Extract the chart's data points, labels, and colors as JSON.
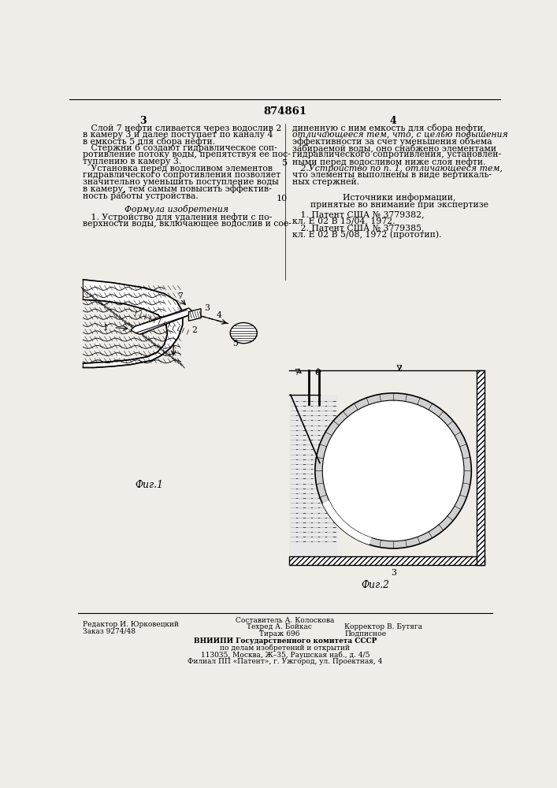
{
  "bg_color": "#f0ede8",
  "page_number_center": "874861",
  "col_left_number": "3",
  "col_right_number": "4",
  "line_number_10": "10",
  "left_col_text": [
    "   Слой 7 нефти сливается через водослив 2",
    "в камеру 3 и далее поступает по каналу 4",
    "в емкость 5 для сбора нефти.",
    "   Стержни 6 создают гидравлическое соп-",
    "ротивление потоку воды, препятствуя ее пос-",
    "туплению в камеру 3.",
    "   Установка перед водосливом элементов",
    "гидравлического сопротивления позволяет",
    "значительно уменьшить поступление воды",
    "в камеру, тем самым повысить эффектив-",
    "ность работы устройства."
  ],
  "formula_title": "Формула изобретения",
  "formula_text": [
    "   1. Устройство для удаления нефти с по-",
    "верхности воды, включающее водослив и сое-"
  ],
  "right_col_top": [
    "диненную с ним емкость для сбора нефти,",
    "отличающееся тем, что, с целью повышения",
    "эффективности за счет уменьшения объема",
    "забираемой воды, оно снабжено элементами",
    "гидравлического сопротивления, установлен-",
    "ными перед водосливом ниже слоя нефти.",
    "   2.Устройство по п. 1, отличающееся тем,",
    "что элементы выполнены в виде вертикаль-",
    "ных стержней."
  ],
  "sources_title": "Источники информации,",
  "sources_subtitle": "принятые во внимание при экспертизе",
  "sources_text": [
    "   1. Патент США № 3779382,",
    "кл. Е 02 В 15/04, 1972.",
    "   2. Патент США № 3779385,",
    "кл. Е 02 В 5/08, 1972 (прототип)."
  ],
  "fig1_label": "Фиг.1",
  "fig2_label": "Фиг.2",
  "footer_left_1": "Редактор И. Юрковецкий",
  "footer_left_2": "Заказ 9274/48",
  "footer_center_1": "Составитель А. Колоскова",
  "footer_center_2": "Техред А. Бойкас",
  "footer_center_3": "Корректор В. Бутяга",
  "footer_center_4": "Тираж 696",
  "footer_center_5": "Подписное",
  "footer_org_1": "ВНИИПИ Государственного комитета СССР",
  "footer_org_2": "по делам изобретений и открытий",
  "footer_org_3": "113035, Москва, Ж–35, Раушская наб., д. 4/5",
  "footer_org_4": "Филиал ПП «Патент», г. Ужгород, ул. Проектная, 4"
}
